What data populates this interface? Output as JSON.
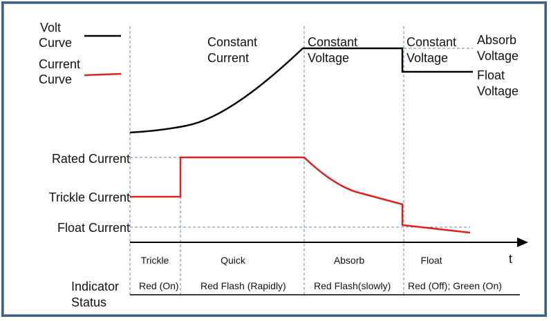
{
  "legend": {
    "volt_line1": "Volt",
    "volt_line2": "Curve",
    "current_line1": "Current",
    "current_line2": "Curve"
  },
  "phases": {
    "constant_current_1": "Constant",
    "constant_current_2": "Current",
    "constant_voltage_a1": "Constant",
    "constant_voltage_a2": "Voltage",
    "constant_voltage_b1": "Constant",
    "constant_voltage_b2": "Voltage"
  },
  "voltage_labels": {
    "absorb_1": "Absorb",
    "absorb_2": "Voltage",
    "float_1": "Float",
    "float_2": "Voltage"
  },
  "current_labels": {
    "rated": "Rated  Current",
    "trickle": "Trickle  Current",
    "float": "Float  Current"
  },
  "axis": {
    "t_label": "t"
  },
  "stages": [
    "Trickle",
    "Quick",
    "Absorb",
    "Float"
  ],
  "indicator": {
    "label_1": "Indicator",
    "label_2": "Status",
    "states": [
      "Red (On)",
      "Red Flash (Rapidly)",
      "Red Flash(slowly)",
      "Red (Off); Green (On)"
    ]
  },
  "colors": {
    "volt_curve": "#000000",
    "current_curve": "#e0201a",
    "divider": "#5b86c2",
    "frame": "#3f5f86"
  }
}
